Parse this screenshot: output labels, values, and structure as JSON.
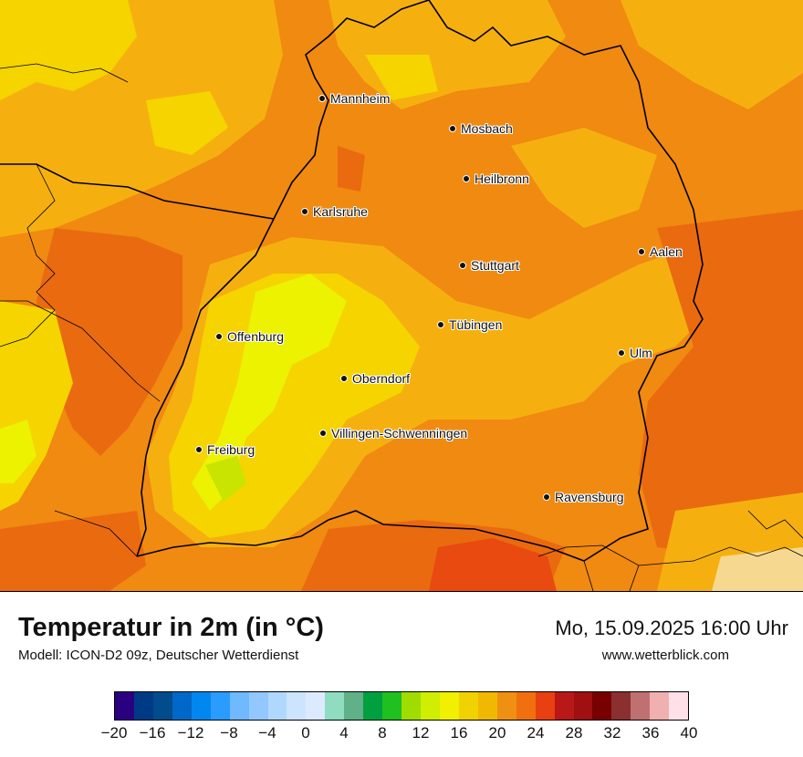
{
  "map": {
    "cities": [
      {
        "name": "Mannheim"
      },
      {
        "name": "Mosbach"
      },
      {
        "name": "Heilbronn"
      },
      {
        "name": "Karlsruhe"
      },
      {
        "name": "Aalen"
      },
      {
        "name": "Stuttgart"
      },
      {
        "name": "Tübingen"
      },
      {
        "name": "Offenburg"
      },
      {
        "name": "Ulm"
      },
      {
        "name": "Oberndorf"
      },
      {
        "name": "Villingen-Schwenningen"
      },
      {
        "name": "Freiburg"
      },
      {
        "name": "Ravensburg"
      }
    ],
    "colors": {
      "base_orange": "#f08a10",
      "light_orange": "#f5b010",
      "yellow": "#f5d400",
      "bright_yellow": "#ecf200",
      "dark_orange": "#ea6a10",
      "red_orange": "#e84a10",
      "border": "#000000"
    }
  },
  "footer": {
    "title": "Temperatur in 2m (in °C)",
    "model": "Modell: ICON-D2 09z, Deutscher Wetterdienst",
    "datetime": "Mo, 15.09.2025 16:00 Uhr",
    "source": "www.wetterblick.com"
  },
  "legend": {
    "min": -20,
    "max": 40,
    "step": 2,
    "tick_labels": [
      "−20",
      "−16",
      "−12",
      "−8",
      "−4",
      "0",
      "4",
      "8",
      "12",
      "16",
      "20",
      "24",
      "28",
      "32",
      "36",
      "40"
    ],
    "tick_values": [
      -20,
      -16,
      -12,
      -8,
      -4,
      0,
      4,
      8,
      12,
      16,
      20,
      24,
      28,
      32,
      36,
      40
    ],
    "colors": [
      "#2b0080",
      "#003a87",
      "#004c8c",
      "#0068c8",
      "#0088f0",
      "#2a9cff",
      "#70b8ff",
      "#92c8ff",
      "#b0d8ff",
      "#cde4ff",
      "#dceaff",
      "#90dcc0",
      "#60b088",
      "#00a040",
      "#20c020",
      "#a0dc00",
      "#d0ee00",
      "#f0f000",
      "#f0d200",
      "#f0b800",
      "#f09010",
      "#f07010",
      "#e84010",
      "#b81818",
      "#a01010",
      "#780000",
      "#8a3030",
      "#c07070",
      "#f0b0b0",
      "#ffe0e8"
    ]
  }
}
